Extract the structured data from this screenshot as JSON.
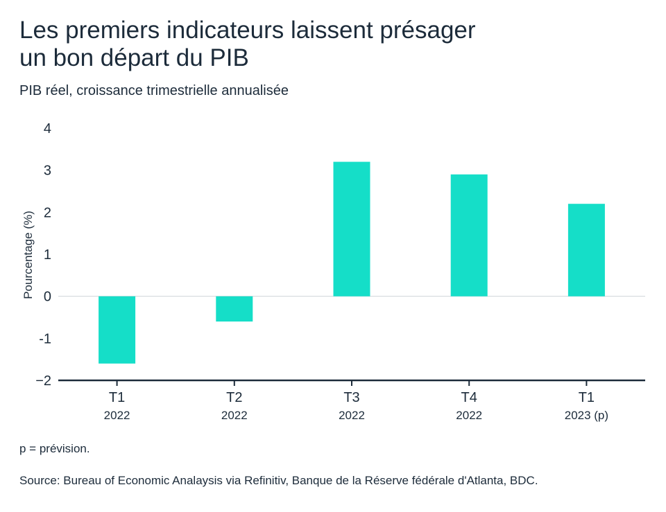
{
  "title_line1": "Les premiers indicateurs laissent présager",
  "title_line2": "un bon départ du PIB",
  "subtitle": "PIB réel, croissance trimestrielle annualisée",
  "note": "p = prévision.",
  "source": "Source: Bureau of Economic Analaysis via Refinitiv, Banque de la Réserve fédérale d'Atlanta, BDC.",
  "colors": {
    "bar": "#15dec8",
    "axis": "#1c2b3a",
    "gridline": "#cfd4d9",
    "text": "#1c2b3a"
  },
  "chart_data": {
    "type": "bar",
    "categories": [
      {
        "label": "T1",
        "sublabel": "2022"
      },
      {
        "label": "T2",
        "sublabel": "2022"
      },
      {
        "label": "T3",
        "sublabel": "2022"
      },
      {
        "label": "T4",
        "sublabel": "2022"
      },
      {
        "label": "T1",
        "sublabel": "2023 (p)"
      }
    ],
    "values": [
      -1.6,
      -0.6,
      3.2,
      2.9,
      2.2
    ],
    "ylabel": "Pourcentage (%)",
    "ylim": [
      -2,
      4
    ],
    "yticks": [
      4,
      3,
      2,
      1,
      0,
      -1,
      -2
    ],
    "ytick_labels": [
      "4",
      "3",
      "2",
      "1",
      "0",
      "-1",
      "−2"
    ],
    "grid": false,
    "zero_line": true
  }
}
